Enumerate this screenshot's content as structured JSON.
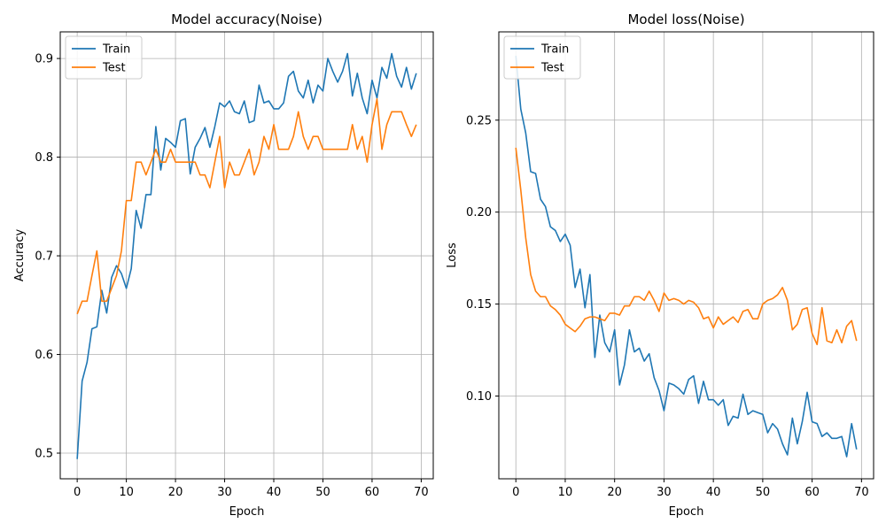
{
  "colors": {
    "train": "#1f77b4",
    "test": "#ff7f0e",
    "grid": "#b0b0b0"
  },
  "chart_data": [
    {
      "type": "line",
      "title": "Model accuracy(Noise)",
      "xlabel": "Epoch",
      "ylabel": "Accuracy",
      "xlim": [
        -3.45,
        72.45
      ],
      "ylim": [
        0.474,
        0.927
      ],
      "xticks": [
        0,
        10,
        20,
        30,
        40,
        50,
        60,
        70
      ],
      "yticks": [
        0.5,
        0.6,
        0.7,
        0.8,
        0.9
      ],
      "ytick_labels": [
        "0.5",
        "0.6",
        "0.7",
        "0.8",
        "0.9"
      ],
      "grid": true,
      "legend": "upper left",
      "x": [
        0,
        1,
        2,
        3,
        4,
        5,
        6,
        7,
        8,
        9,
        10,
        11,
        12,
        13,
        14,
        15,
        16,
        17,
        18,
        19,
        20,
        21,
        22,
        23,
        24,
        25,
        26,
        27,
        28,
        29,
        30,
        31,
        32,
        33,
        34,
        35,
        36,
        37,
        38,
        39,
        40,
        41,
        42,
        43,
        44,
        45,
        46,
        47,
        48,
        49,
        50,
        51,
        52,
        53,
        54,
        55,
        56,
        57,
        58,
        59,
        60,
        61,
        62,
        63,
        64,
        65,
        66,
        67,
        68,
        69
      ],
      "series": [
        {
          "name": "Train",
          "color_key": "train",
          "values": [
            0.494,
            0.573,
            0.592,
            0.626,
            0.628,
            0.665,
            0.642,
            0.678,
            0.69,
            0.682,
            0.667,
            0.687,
            0.746,
            0.728,
            0.762,
            0.762,
            0.831,
            0.787,
            0.819,
            0.815,
            0.81,
            0.837,
            0.839,
            0.783,
            0.81,
            0.819,
            0.83,
            0.81,
            0.831,
            0.855,
            0.851,
            0.857,
            0.846,
            0.844,
            0.857,
            0.835,
            0.837,
            0.873,
            0.855,
            0.857,
            0.849,
            0.849,
            0.855,
            0.882,
            0.887,
            0.867,
            0.86,
            0.878,
            0.855,
            0.873,
            0.867,
            0.9,
            0.887,
            0.876,
            0.887,
            0.905,
            0.862,
            0.885,
            0.86,
            0.844,
            0.878,
            0.86,
            0.891,
            0.88,
            0.905,
            0.882,
            0.871,
            0.891,
            0.869,
            0.885
          ]
        },
        {
          "name": "Test",
          "color_key": "test",
          "values": [
            0.641,
            0.654,
            0.654,
            0.68,
            0.705,
            0.654,
            0.654,
            0.667,
            0.68,
            0.705,
            0.756,
            0.756,
            0.795,
            0.795,
            0.782,
            0.795,
            0.808,
            0.795,
            0.795,
            0.808,
            0.795,
            0.795,
            0.795,
            0.795,
            0.795,
            0.782,
            0.782,
            0.769,
            0.795,
            0.821,
            0.769,
            0.795,
            0.782,
            0.782,
            0.795,
            0.808,
            0.782,
            0.795,
            0.821,
            0.808,
            0.833,
            0.808,
            0.808,
            0.808,
            0.821,
            0.846,
            0.821,
            0.808,
            0.821,
            0.821,
            0.808,
            0.808,
            0.808,
            0.808,
            0.808,
            0.808,
            0.833,
            0.808,
            0.821,
            0.795,
            0.833,
            0.859,
            0.808,
            0.833,
            0.846,
            0.846,
            0.846,
            0.833,
            0.821,
            0.833
          ]
        }
      ]
    },
    {
      "type": "line",
      "title": "Model loss(Noise)",
      "xlabel": "Epoch",
      "ylabel": "Loss",
      "xlim": [
        -3.45,
        72.45
      ],
      "ylim": [
        0.055,
        0.298
      ],
      "xticks": [
        0,
        10,
        20,
        30,
        40,
        50,
        60,
        70
      ],
      "yticks": [
        0.1,
        0.15,
        0.2,
        0.25
      ],
      "ytick_labels": [
        "0.10",
        "0.15",
        "0.20",
        "0.25"
      ],
      "grid": true,
      "legend": "upper left",
      "x": [
        0,
        1,
        2,
        3,
        4,
        5,
        6,
        7,
        8,
        9,
        10,
        11,
        12,
        13,
        14,
        15,
        16,
        17,
        18,
        19,
        20,
        21,
        22,
        23,
        24,
        25,
        26,
        27,
        28,
        29,
        30,
        31,
        32,
        33,
        34,
        35,
        36,
        37,
        38,
        39,
        40,
        41,
        42,
        43,
        44,
        45,
        46,
        47,
        48,
        49,
        50,
        51,
        52,
        53,
        54,
        55,
        56,
        57,
        58,
        59,
        60,
        61,
        62,
        63,
        64,
        65,
        66,
        67,
        68,
        69
      ],
      "series": [
        {
          "name": "Train",
          "color_key": "train",
          "values": [
            0.285,
            0.256,
            0.243,
            0.222,
            0.221,
            0.207,
            0.203,
            0.192,
            0.19,
            0.184,
            0.188,
            0.182,
            0.159,
            0.169,
            0.148,
            0.166,
            0.121,
            0.144,
            0.129,
            0.124,
            0.136,
            0.106,
            0.117,
            0.136,
            0.124,
            0.126,
            0.119,
            0.123,
            0.11,
            0.103,
            0.092,
            0.107,
            0.106,
            0.104,
            0.101,
            0.109,
            0.111,
            0.096,
            0.108,
            0.098,
            0.098,
            0.095,
            0.098,
            0.084,
            0.089,
            0.088,
            0.101,
            0.09,
            0.092,
            0.091,
            0.09,
            0.08,
            0.085,
            0.082,
            0.074,
            0.068,
            0.088,
            0.074,
            0.086,
            0.102,
            0.086,
            0.085,
            0.078,
            0.08,
            0.077,
            0.077,
            0.078,
            0.067,
            0.085,
            0.071
          ]
        },
        {
          "name": "Test",
          "color_key": "test",
          "values": [
            0.235,
            0.212,
            0.186,
            0.166,
            0.157,
            0.154,
            0.154,
            0.149,
            0.147,
            0.144,
            0.139,
            0.137,
            0.135,
            0.138,
            0.142,
            0.143,
            0.143,
            0.142,
            0.141,
            0.145,
            0.145,
            0.144,
            0.149,
            0.149,
            0.154,
            0.154,
            0.152,
            0.157,
            0.152,
            0.146,
            0.156,
            0.152,
            0.153,
            0.152,
            0.15,
            0.152,
            0.151,
            0.148,
            0.142,
            0.143,
            0.137,
            0.143,
            0.139,
            0.141,
            0.143,
            0.14,
            0.146,
            0.147,
            0.142,
            0.142,
            0.15,
            0.152,
            0.153,
            0.155,
            0.159,
            0.152,
            0.136,
            0.139,
            0.147,
            0.148,
            0.134,
            0.128,
            0.148,
            0.13,
            0.129,
            0.136,
            0.129,
            0.138,
            0.141,
            0.13
          ]
        }
      ]
    }
  ]
}
